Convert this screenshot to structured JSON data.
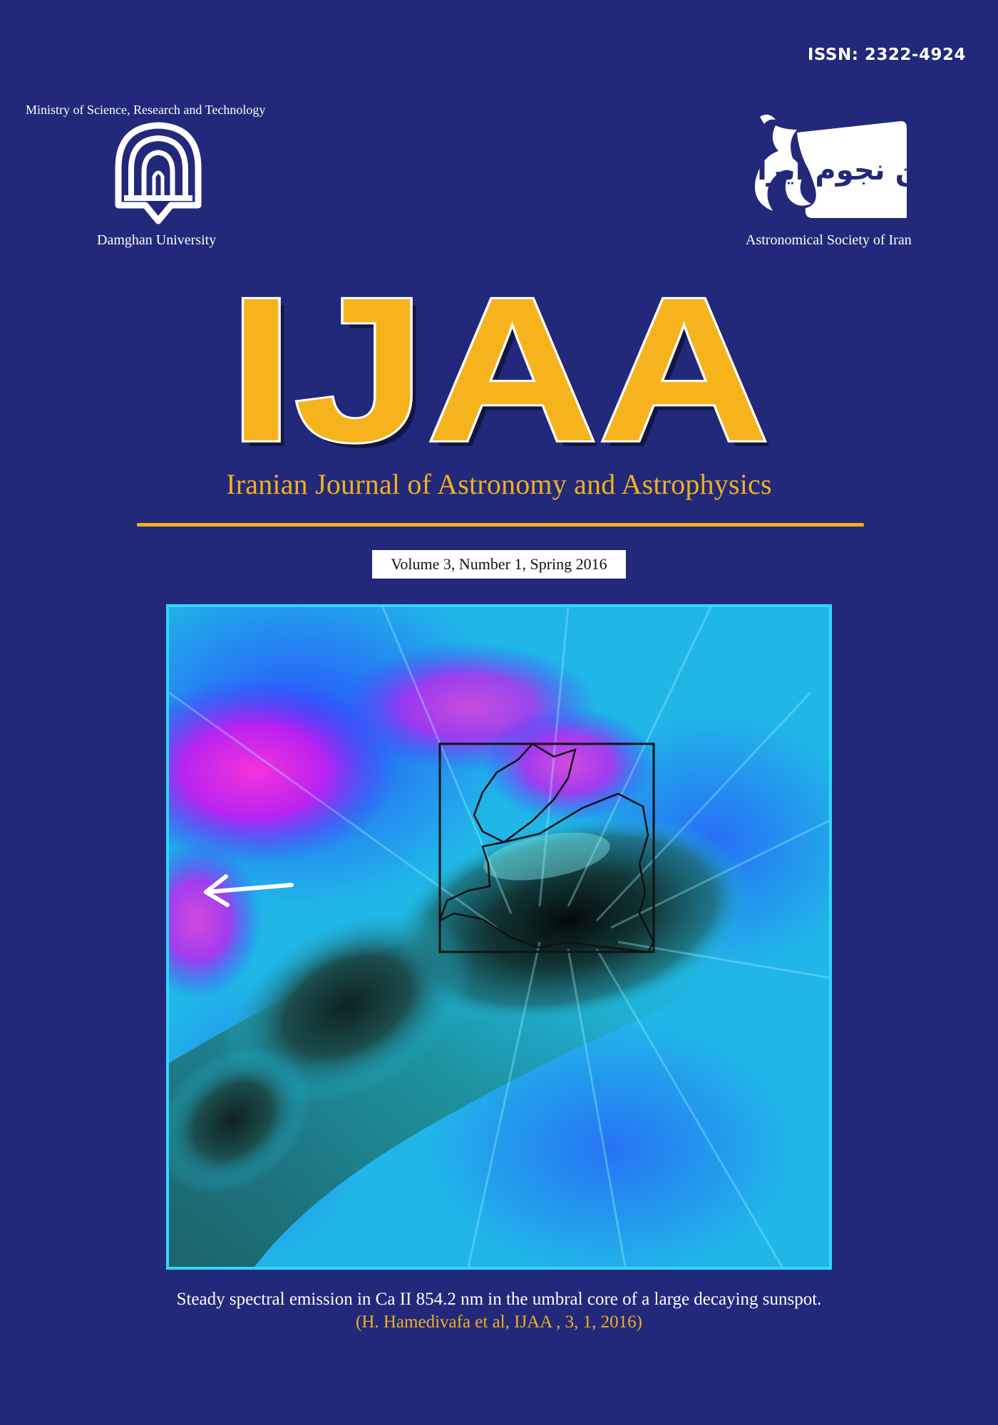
{
  "header": {
    "issn": "ISSN: 2322-4924",
    "ministry": "Ministry of Science, Research and Technology",
    "university": "Damghan University",
    "society": "Astronomical Society of Iran",
    "society_logo_text": "انجمن نجوم ایران"
  },
  "masthead": {
    "acronym": "IJAA",
    "title": "Iranian Journal of  Astronomy and Astrophysics",
    "volume": "Volume 3, Number 1, Spring 2016"
  },
  "cover": {
    "caption": "Steady spectral emission in Ca II 854.2 nm in the umbral core of a large decaying sunspot.",
    "citation": "(H. Hamedivafa  et  al, IJAA , 3, 1, 2016)"
  },
  "colors": {
    "background": "#22297a",
    "accent": "#f2b01e",
    "image_border": "#33d6ff"
  }
}
